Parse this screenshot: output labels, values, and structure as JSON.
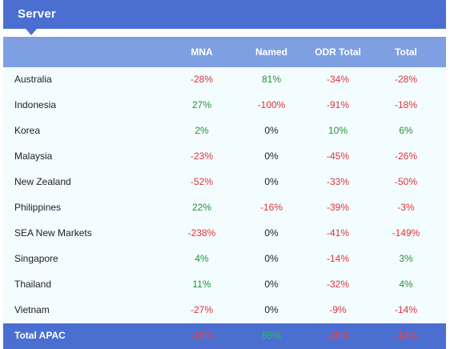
{
  "header": {
    "title": "Server"
  },
  "columns": {
    "mna": "MNA",
    "named": "Named",
    "odr": "ODR Total",
    "total": "Total"
  },
  "rows": [
    {
      "country": "Australia",
      "mna": "-28%",
      "named": "81%",
      "odr": "-34%",
      "total": "-28%"
    },
    {
      "country": "Indonesia",
      "mna": "27%",
      "named": "-100%",
      "odr": "-91%",
      "total": "-18%"
    },
    {
      "country": "Korea",
      "mna": "2%",
      "named": "0%",
      "odr": "10%",
      "total": "6%"
    },
    {
      "country": "Malaysia",
      "mna": "-23%",
      "named": "0%",
      "odr": "-45%",
      "total": "-26%"
    },
    {
      "country": "New Zealand",
      "mna": "-52%",
      "named": "0%",
      "odr": "-33%",
      "total": "-50%"
    },
    {
      "country": "Philippines",
      "mna": "22%",
      "named": "-16%",
      "odr": "-39%",
      "total": "-3%"
    },
    {
      "country": "SEA New Markets",
      "mna": "-238%",
      "named": "0%",
      "odr": "-41%",
      "total": "-149%"
    },
    {
      "country": "Singapore",
      "mna": "4%",
      "named": "0%",
      "odr": "-14%",
      "total": "3%"
    },
    {
      "country": "Thailand",
      "mna": "11%",
      "named": "0%",
      "odr": "-32%",
      "total": "4%"
    },
    {
      "country": "Vietnam",
      "mna": "-27%",
      "named": "0%",
      "odr": "-9%",
      "total": "-14%"
    }
  ],
  "total_row": {
    "label": "Total APAC",
    "mna": "-19%",
    "named": "55%",
    "odr": "-18%",
    "total": "-14%"
  },
  "colors": {
    "header_bg": "#4a6fd1",
    "column_header_bg": "#7e9fe2",
    "table_bg": "#f3fdff",
    "negative": "#e0323a",
    "positive": "#2e8b3a"
  }
}
